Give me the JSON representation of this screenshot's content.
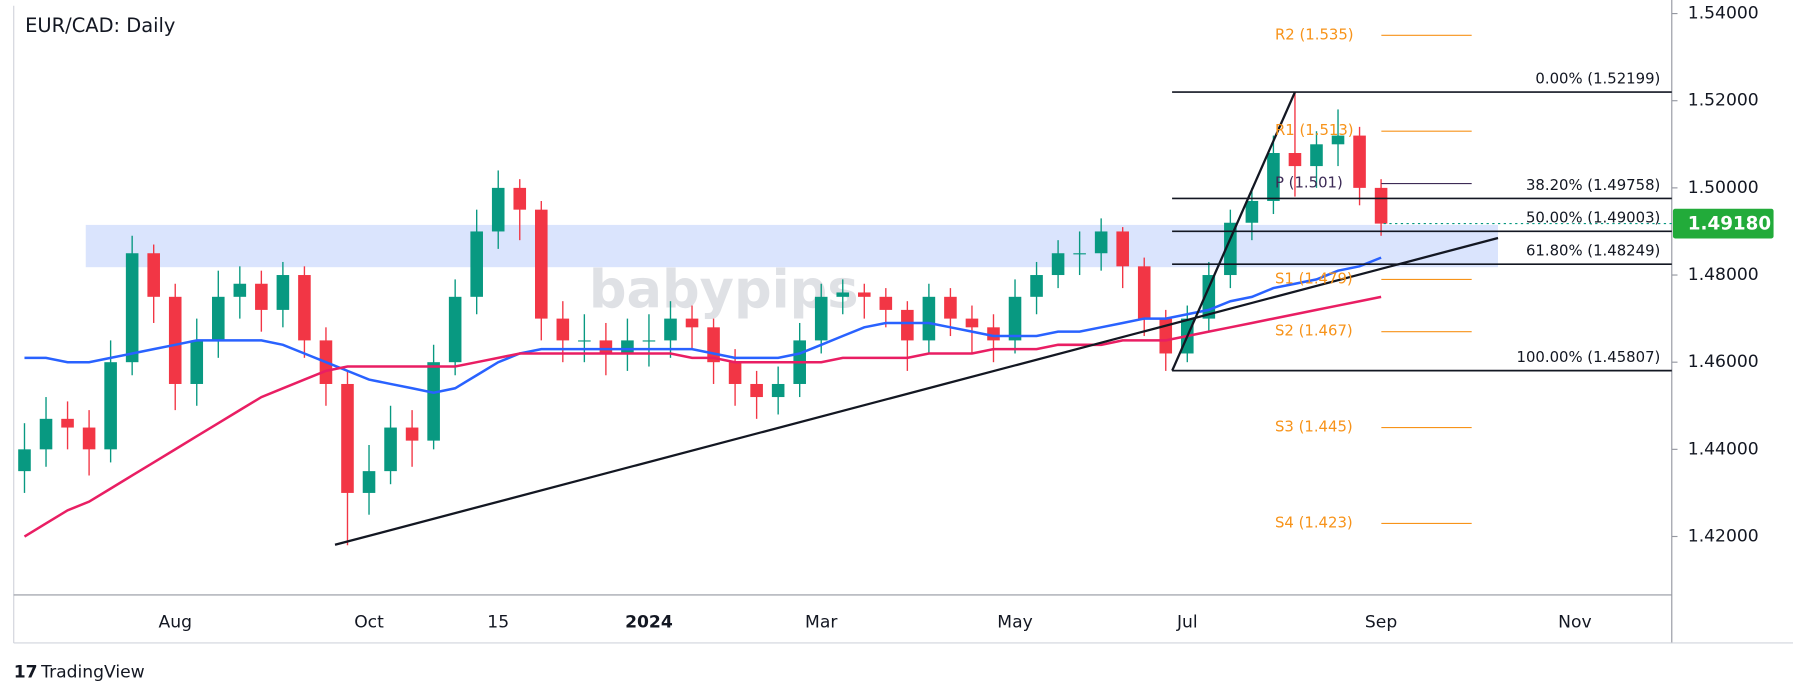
{
  "chart_data": {
    "type": "candlestick",
    "title": "EUR/CAD: Daily",
    "watermark": "babypips",
    "footer": "TradingView",
    "up_color": "#089981",
    "down_color": "#f23645",
    "categories": [
      null,
      null,
      null,
      null,
      null,
      null,
      null,
      "Aug",
      null,
      null,
      null,
      null,
      null,
      null,
      null,
      null,
      "Oct",
      null,
      null,
      null,
      null,
      null,
      "15",
      null,
      null,
      null,
      null,
      null,
      null,
      "2024",
      null,
      null,
      null,
      null,
      null,
      null,
      null,
      "Mar",
      null,
      null,
      null,
      null,
      null,
      null,
      null,
      null,
      "May",
      null,
      null,
      null,
      null,
      null,
      null,
      null,
      "Jul",
      null,
      null,
      null,
      null,
      null,
      null,
      null,
      null,
      "Sep",
      null,
      null,
      null,
      null,
      null,
      null,
      null,
      null,
      "Nov",
      null,
      null,
      null,
      null
    ],
    "open": [
      1.435,
      1.44,
      1.447,
      1.445,
      1.44,
      1.46,
      1.485,
      1.475,
      1.455,
      1.465,
      1.475,
      1.478,
      1.472,
      1.48,
      1.465,
      1.455,
      1.43,
      1.435,
      1.445,
      1.442,
      1.46,
      1.475,
      1.49,
      1.5,
      1.495,
      1.47,
      1.465,
      1.465,
      1.462,
      1.465,
      1.465,
      1.47,
      1.468,
      1.46,
      1.455,
      1.452,
      1.455,
      1.465,
      1.475,
      1.476,
      1.475,
      1.472,
      1.465,
      1.475,
      1.47,
      1.468,
      1.465,
      1.475,
      1.48,
      1.485,
      1.485,
      1.49,
      1.482,
      1.47,
      1.462,
      1.47,
      1.48,
      1.492,
      1.497,
      1.508,
      1.505,
      1.51,
      1.512,
      1.5,
      null,
      null,
      null,
      null,
      null,
      null,
      null,
      null,
      null,
      null,
      null,
      null,
      null
    ],
    "high": [
      1.446,
      1.452,
      1.451,
      1.449,
      1.465,
      1.489,
      1.487,
      1.478,
      1.47,
      1.481,
      1.482,
      1.481,
      1.483,
      1.482,
      1.468,
      1.458,
      1.441,
      1.45,
      1.449,
      1.464,
      1.479,
      1.495,
      1.504,
      1.502,
      1.497,
      1.474,
      1.471,
      1.469,
      1.47,
      1.471,
      1.474,
      1.473,
      1.47,
      1.463,
      1.458,
      1.459,
      1.469,
      1.478,
      1.479,
      1.478,
      1.477,
      1.474,
      1.478,
      1.477,
      1.473,
      1.471,
      1.479,
      1.483,
      1.488,
      1.49,
      1.493,
      1.491,
      1.484,
      1.472,
      1.473,
      1.483,
      1.495,
      1.5,
      1.512,
      1.522,
      1.513,
      1.518,
      1.514,
      1.502,
      null,
      null,
      null,
      null,
      null,
      null,
      null,
      null,
      null,
      null,
      null,
      null,
      null
    ],
    "low": [
      1.43,
      1.436,
      1.44,
      1.434,
      1.437,
      1.457,
      1.469,
      1.449,
      1.45,
      1.461,
      1.47,
      1.467,
      1.468,
      1.461,
      1.45,
      1.418,
      1.425,
      1.432,
      1.436,
      1.44,
      1.457,
      1.471,
      1.486,
      1.488,
      1.465,
      1.46,
      1.46,
      1.457,
      1.458,
      1.459,
      1.461,
      1.463,
      1.455,
      1.45,
      1.447,
      1.448,
      1.452,
      1.462,
      1.471,
      1.47,
      1.468,
      1.458,
      1.462,
      1.466,
      1.462,
      1.46,
      1.462,
      1.471,
      1.477,
      1.48,
      1.481,
      1.477,
      1.466,
      1.458,
      1.46,
      1.467,
      1.477,
      1.488,
      1.494,
      1.498,
      1.5,
      1.505,
      1.496,
      1.489,
      null,
      null,
      null,
      null,
      null,
      null,
      null,
      null,
      null,
      null,
      null,
      null,
      null
    ],
    "close": [
      1.44,
      1.447,
      1.445,
      1.44,
      1.46,
      1.485,
      1.475,
      1.455,
      1.465,
      1.475,
      1.478,
      1.472,
      1.48,
      1.465,
      1.455,
      1.43,
      1.435,
      1.445,
      1.442,
      1.46,
      1.475,
      1.49,
      1.5,
      1.495,
      1.47,
      1.465,
      1.465,
      1.462,
      1.465,
      1.465,
      1.47,
      1.468,
      1.46,
      1.455,
      1.452,
      1.455,
      1.465,
      1.475,
      1.476,
      1.475,
      1.472,
      1.465,
      1.475,
      1.47,
      1.468,
      1.465,
      1.475,
      1.48,
      1.485,
      1.485,
      1.49,
      1.482,
      1.47,
      1.462,
      1.47,
      1.48,
      1.492,
      1.497,
      1.508,
      1.505,
      1.51,
      1.512,
      1.5,
      1.4918,
      null,
      null,
      null,
      null,
      null,
      null,
      null,
      null,
      null,
      null,
      null,
      null,
      null
    ],
    "series": [
      {
        "color": "#2962ff",
        "values": [
          1.461,
          1.461,
          1.46,
          1.46,
          1.461,
          1.462,
          1.463,
          1.464,
          1.465,
          1.465,
          1.465,
          1.465,
          1.464,
          1.462,
          1.46,
          1.458,
          1.456,
          1.455,
          1.454,
          1.453,
          1.454,
          1.457,
          1.46,
          1.462,
          1.463,
          1.463,
          1.463,
          1.463,
          1.463,
          1.463,
          1.463,
          1.463,
          1.462,
          1.461,
          1.461,
          1.461,
          1.462,
          1.464,
          1.466,
          1.468,
          1.469,
          1.469,
          1.469,
          1.468,
          1.467,
          1.466,
          1.466,
          1.466,
          1.467,
          1.467,
          1.468,
          1.469,
          1.47,
          1.47,
          1.471,
          1.472,
          1.474,
          1.475,
          1.477,
          1.478,
          1.479,
          1.481,
          1.482,
          1.484,
          null,
          null,
          null,
          null,
          null,
          null,
          null,
          null,
          null,
          null,
          null,
          null,
          null
        ]
      },
      {
        "color": "#e91e63",
        "values": [
          1.42,
          1.423,
          1.426,
          1.428,
          1.431,
          1.434,
          1.437,
          1.44,
          1.443,
          1.446,
          1.449,
          1.452,
          1.454,
          1.456,
          1.458,
          1.459,
          1.459,
          1.459,
          1.459,
          1.459,
          1.459,
          1.46,
          1.461,
          1.462,
          1.462,
          1.462,
          1.462,
          1.462,
          1.462,
          1.462,
          1.462,
          1.461,
          1.461,
          1.46,
          1.46,
          1.46,
          1.46,
          1.46,
          1.461,
          1.461,
          1.461,
          1.461,
          1.462,
          1.462,
          1.462,
          1.463,
          1.463,
          1.463,
          1.464,
          1.464,
          1.464,
          1.465,
          1.465,
          1.465,
          1.466,
          1.467,
          1.468,
          1.469,
          1.47,
          1.471,
          1.472,
          1.473,
          1.474,
          1.475,
          null,
          null,
          null,
          null,
          null,
          null,
          null,
          null,
          null,
          null,
          null,
          null,
          null
        ]
      }
    ],
    "ylim": [
      1.4066,
      1.5418
    ],
    "yticks": [
      {
        "value": 1.42,
        "label": "1.42000"
      },
      {
        "value": 1.44,
        "label": "1.44000"
      },
      {
        "value": 1.46,
        "label": "1.46000"
      },
      {
        "value": 1.48,
        "label": "1.48000"
      },
      {
        "value": 1.5,
        "label": "1.50000"
      },
      {
        "value": 1.52,
        "label": "1.52000"
      },
      {
        "value": 1.54,
        "label": "1.54000"
      }
    ],
    "current_price": {
      "value": 1.4918,
      "label": "1.49180"
    },
    "zone": [
      1.4818,
      1.4915
    ],
    "trendlines": [
      {
        "x": [
          14.42,
          68.43
        ],
        "y": [
          1.4181,
          1.4885
        ]
      },
      {
        "x": [
          53.3,
          59.0
        ],
        "y": [
          1.45807,
          1.52199
        ]
      }
    ],
    "fib_levels": [
      {
        "value": 1.52199,
        "label": "0.00% (1.52199)"
      },
      {
        "value": 1.49758,
        "label": "38.20% (1.49758)"
      },
      {
        "value": 1.49003,
        "label": "50.00% (1.49003)"
      },
      {
        "value": 1.48249,
        "label": "61.80% (1.48249)"
      },
      {
        "value": 1.45807,
        "label": "100.00% (1.45807)"
      }
    ],
    "pivot_levels": [
      {
        "value": 1.535,
        "label": "R2 (1.535)",
        "color": "#f7931a"
      },
      {
        "value": 1.513,
        "label": "R1 (1.513)",
        "color": "#f7931a"
      },
      {
        "value": 1.501,
        "label": "P (1.501)",
        "color": "#3d2b56"
      },
      {
        "value": 1.479,
        "label": "S1 (1.479)",
        "color": "#f7931a"
      },
      {
        "value": 1.467,
        "label": "S2 (1.467)",
        "color": "#f7931a"
      },
      {
        "value": 1.445,
        "label": "S3 (1.445)",
        "color": "#f7931a"
      },
      {
        "value": 1.423,
        "label": "S4 (1.423)",
        "color": "#f7931a"
      }
    ]
  }
}
